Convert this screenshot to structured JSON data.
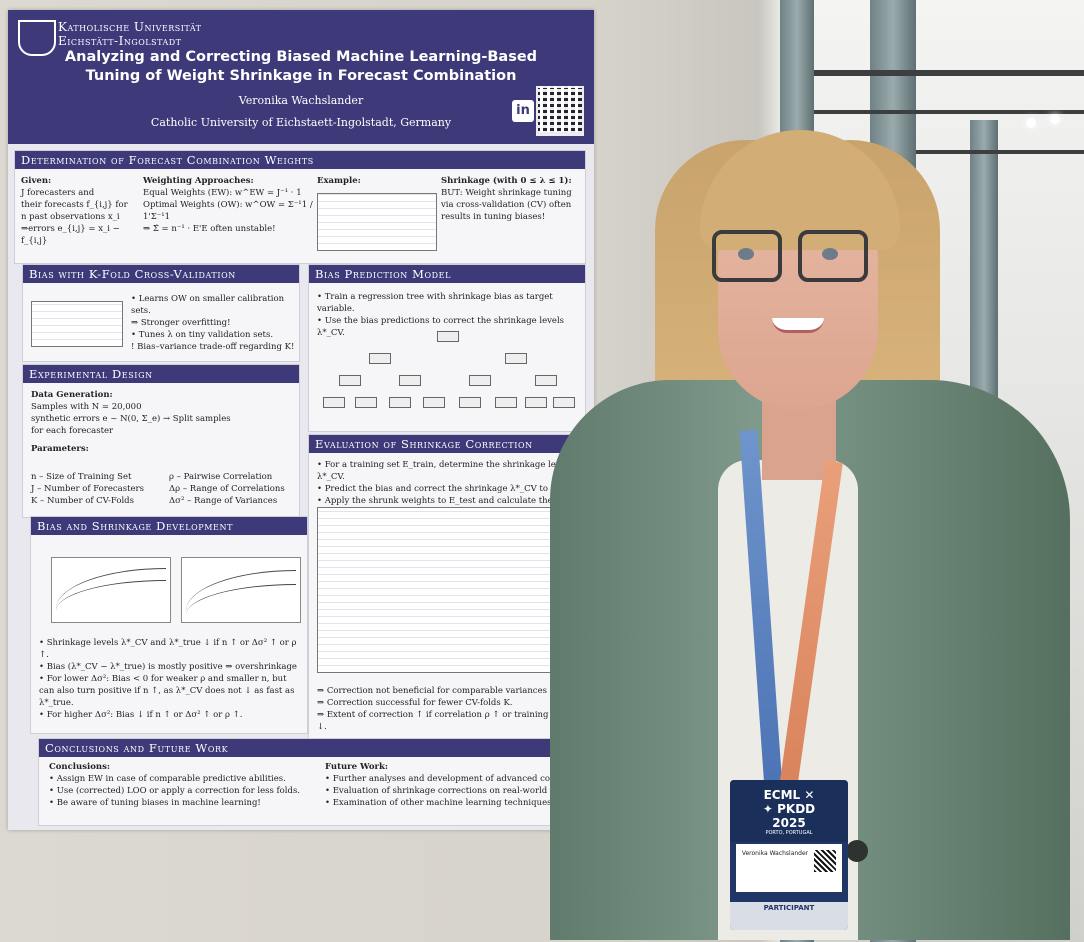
{
  "poster": {
    "university": [
      "Katholische Universität",
      "Eichstätt-Ingolstadt"
    ],
    "title": [
      "Analyzing and Correcting Biased Machine Learning-Based",
      "Tuning of Weight Shrinkage in Forecast Combination"
    ],
    "author": "Veronika Wachslander",
    "affiliation": "Catholic University of Eichstaett-Ingolstadt, Germany",
    "linkedin_label": "in",
    "sections": {
      "determination": {
        "title": "Determination of Forecast Combination Weights",
        "given_label": "Given:",
        "weighting_label": "Weighting Approaches:",
        "example_label": "Example:",
        "shrinkage_label": "Shrinkage (with 0 ≤ λ ≤ 1):",
        "but_text": "BUT: Weight shrinkage tuning via cross-validation (CV) often results in tuning biases!",
        "given_items": [
          "J forecasters and",
          "their forecasts f_{i,j} for",
          "n past observations x_i",
          "⇒errors e_{i,j} = x_i − f_{i,j}"
        ],
        "weighting_items": [
          "Equal Weights (EW): w^EW = J⁻¹ · 1",
          "Optimal Weights (OW): w^OW = Σ⁻¹1 / 1'Σ⁻¹1",
          "⇒ Σ̂ = n⁻¹ · E'E often unstable!"
        ]
      },
      "bias_kfold": {
        "title": "Bias with K-Fold Cross-Validation",
        "items": [
          "• Learns OW on smaller calibration sets.",
          "⇒ Stronger overfitting!",
          "• Tunes λ on tiny validation sets.",
          "! Bias–variance trade-off regarding K!"
        ]
      },
      "bias_prediction": {
        "title": "Bias Prediction Model",
        "items": [
          "• Train a regression tree with shrinkage bias as target variable.",
          "• Use the bias predictions to correct the shrinkage levels λ*_CV."
        ]
      },
      "experimental": {
        "title": "Experimental Design",
        "data_gen_label": "Data Generation:",
        "data_gen_items": [
          "Samples with N = 20,000",
          "synthetic errors e ~ N(0, Σ_e) → Split samples",
          "for each forecaster"
        ],
        "params_label": "Parameters:",
        "params": [
          "n – Size of Training Set",
          "J – Number of Forecasters",
          "K – Number of CV-Folds",
          "ρ – Pairwise Correlation",
          "Δρ – Range of Correlations",
          "Δσ² – Range of Variances"
        ]
      },
      "evaluation": {
        "title": "Evaluation of Shrinkage Correction",
        "items": [
          "• For a training set E_train, determine the shrinkage level λ*_CV.",
          "• Predict the bias and correct the shrinkage λ*_CV to λ̃*_CV.",
          "• Apply the shrunk weights to E_test and calculate the MSE."
        ],
        "conclusions": [
          "⇒ Correction not beneficial for comparable variances σ².",
          "⇒ Correction successful for fewer CV-folds K.",
          "⇒ Extent of correction ↑ if correlation ρ ↑ or training size n ↓."
        ]
      },
      "development": {
        "title": "Bias and Shrinkage Development",
        "items": [
          "• Shrinkage levels λ*_CV and λ*_true ↓ if n ↑ or Δσ² ↑ or ρ ↑.",
          "• Bias (λ*_CV − λ*_true) is mostly positive ⇒ overshrinkage",
          "• For lower Δσ²: Bias < 0 for weaker ρ and smaller n, but can also turn positive if n ↑, as λ*_CV does not ↓ as fast as λ*_true.",
          "• For higher Δσ²: Bias ↓ if n ↑ or Δσ² ↑ or ρ ↑."
        ]
      },
      "conclusions": {
        "title": "Conclusions and Future Work",
        "left_label": "Conclusions:",
        "left_items": [
          "• Assign EW in case of comparable predictive abilities.",
          "• Use (corrected) LOO or apply a correction for less folds.",
          "• Be aware of tuning biases in machine learning!"
        ],
        "right_label": "Future Work:",
        "right_items": [
          "• Further analyses and development of advanced corrections.",
          "• Evaluation of shrinkage corrections on real-world datasets.",
          "• Examination of other machine learning techniques for biases."
        ]
      }
    }
  },
  "badge": {
    "line1": "ECML ✕",
    "line2": "✦ PKDD",
    "line3": "2025",
    "city": "PORTO, PORTUGAL",
    "name": "Veronika Wachslander",
    "role": "PARTICIPANT"
  },
  "colors": {
    "poster_primary": "#3e3a7a",
    "jacket": "#6b8677",
    "hair": "#d2ad76",
    "badge": "#1f3666"
  }
}
